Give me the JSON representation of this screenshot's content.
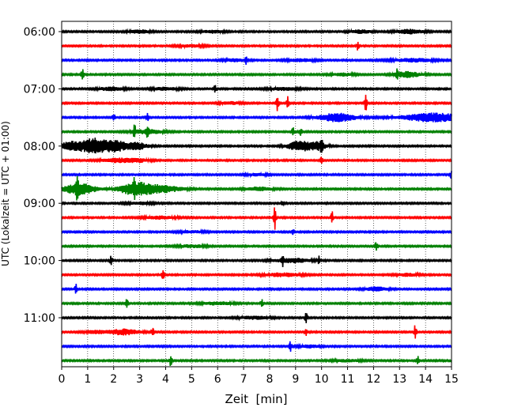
{
  "chart_data": {
    "type": "line",
    "title": "",
    "xlabel": "Zeit  [min]",
    "ylabel": "UTC (Lokalzeit = UTC + 01:00)",
    "xlim": [
      0,
      15
    ],
    "x_ticks": [
      "0",
      "1",
      "2",
      "3",
      "4",
      "5",
      "6",
      "7",
      "8",
      "9",
      "10",
      "11",
      "12",
      "13",
      "14",
      "15"
    ],
    "y_tick_labels": [
      "06:00",
      "07:00",
      "08:00",
      "09:00",
      "10:00",
      "11:00"
    ],
    "grid": "vertical dotted at each minute",
    "colors": [
      "#000000",
      "#ff0000",
      "#0000ff",
      "#008000"
    ],
    "trace_interval_min": 15,
    "baseline_amplitude": 0.05,
    "traces": [
      {
        "start": "06:00",
        "color": "black",
        "bursts": [
          [
            3.0,
            0.12,
            0.4
          ],
          [
            5.8,
            0.1,
            0.4
          ],
          [
            11.5,
            0.12,
            0.4
          ],
          [
            13.4,
            0.15,
            0.5
          ]
        ]
      },
      {
        "start": "06:15",
        "color": "red",
        "spikes": [
          [
            11.4,
            0.4
          ]
        ],
        "bursts": [
          [
            5.0,
            0.08,
            0.5
          ]
        ]
      },
      {
        "start": "06:30",
        "color": "blue",
        "spikes": [
          [
            7.1,
            0.3
          ]
        ],
        "bursts": [
          [
            6.7,
            0.1,
            0.4
          ],
          [
            9.2,
            0.1,
            0.5
          ],
          [
            13.5,
            0.12,
            0.8
          ]
        ]
      },
      {
        "start": "06:45",
        "color": "green",
        "spikes": [
          [
            0.8,
            0.55
          ],
          [
            12.9,
            0.35
          ]
        ],
        "bursts": [
          [
            13.3,
            0.2,
            0.5
          ],
          [
            10.8,
            0.1,
            0.4
          ]
        ]
      },
      {
        "start": "07:00",
        "color": "black",
        "spikes": [
          [
            5.9,
            0.35
          ]
        ],
        "bursts": [
          [
            1.9,
            0.12,
            0.5
          ],
          [
            4.0,
            0.1,
            0.5
          ],
          [
            8.5,
            0.1,
            0.6
          ]
        ]
      },
      {
        "start": "07:15",
        "color": "red",
        "spikes": [
          [
            8.3,
            0.55
          ],
          [
            8.7,
            0.5
          ],
          [
            11.7,
            0.65
          ]
        ],
        "bursts": [
          [
            6.5,
            0.1,
            0.4
          ]
        ]
      },
      {
        "start": "07:30",
        "color": "blue",
        "spikes": [
          [
            2.0,
            0.3
          ],
          [
            3.3,
            0.3
          ]
        ],
        "bursts": [
          [
            10.6,
            0.3,
            0.7
          ],
          [
            14.3,
            0.3,
            1.2
          ]
        ]
      },
      {
        "start": "07:45",
        "color": "green",
        "spikes": [
          [
            2.8,
            0.55
          ],
          [
            3.3,
            0.35
          ],
          [
            8.9,
            0.35
          ],
          [
            9.2,
            0.3
          ]
        ],
        "bursts": [
          [
            3.3,
            0.15,
            0.6
          ]
        ]
      },
      {
        "start": "08:00",
        "color": "black",
        "spikes": [
          [
            10.0,
            0.45
          ]
        ],
        "bursts": [
          [
            0.4,
            0.3,
            0.5
          ],
          [
            1.3,
            0.55,
            0.5
          ],
          [
            2.1,
            0.35,
            0.4
          ],
          [
            2.9,
            0.25,
            0.4
          ],
          [
            9.2,
            0.35,
            0.5
          ],
          [
            9.9,
            0.25,
            0.3
          ]
        ]
      },
      {
        "start": "08:15",
        "color": "red",
        "spikes": [
          [
            10.0,
            0.25
          ]
        ],
        "bursts": [
          [
            2.2,
            0.15,
            0.6
          ],
          [
            3.0,
            0.1,
            0.4
          ]
        ]
      },
      {
        "start": "08:30",
        "color": "blue",
        "spikes": [
          [
            15.0,
            0.35
          ]
        ],
        "bursts": [
          [
            7.5,
            0.08,
            0.4
          ]
        ]
      },
      {
        "start": "08:45",
        "color": "green",
        "spikes": [
          [
            0.6,
            0.6
          ],
          [
            2.8,
            0.6
          ]
        ],
        "bursts": [
          [
            0.7,
            0.4,
            0.6
          ],
          [
            2.9,
            0.45,
            0.7
          ],
          [
            4.0,
            0.2,
            0.7
          ],
          [
            7.6,
            0.12,
            0.5
          ]
        ]
      },
      {
        "start": "09:00",
        "color": "black",
        "spikes": [
          [
            8.5,
            0.2
          ]
        ],
        "bursts": [
          [
            3.0,
            0.08,
            0.5
          ]
        ]
      },
      {
        "start": "09:15",
        "color": "red",
        "spikes": [
          [
            8.2,
            0.85
          ],
          [
            10.4,
            0.45
          ]
        ],
        "bursts": [
          [
            3.8,
            0.1,
            0.6
          ]
        ]
      },
      {
        "start": "09:30",
        "color": "blue",
        "spikes": [
          [
            8.9,
            0.2
          ]
        ],
        "bursts": [
          [
            5.0,
            0.08,
            0.5
          ]
        ]
      },
      {
        "start": "09:45",
        "color": "green",
        "spikes": [
          [
            12.1,
            0.35
          ]
        ],
        "bursts": [
          [
            5.0,
            0.1,
            0.5
          ]
        ]
      },
      {
        "start": "10:00",
        "color": "black",
        "spikes": [
          [
            1.9,
            0.45
          ],
          [
            8.5,
            0.35
          ],
          [
            9.9,
            0.3
          ]
        ],
        "bursts": [
          [
            8.9,
            0.15,
            0.7
          ]
        ]
      },
      {
        "start": "10:15",
        "color": "red",
        "spikes": [
          [
            3.9,
            0.5
          ]
        ],
        "bursts": [
          [
            8.5,
            0.12,
            0.7
          ],
          [
            13.3,
            0.1,
            0.4
          ]
        ]
      },
      {
        "start": "10:30",
        "color": "blue",
        "spikes": [
          [
            0.55,
            0.4
          ]
        ],
        "bursts": [
          [
            12.1,
            0.15,
            0.4
          ]
        ]
      },
      {
        "start": "10:45",
        "color": "green",
        "spikes": [
          [
            2.5,
            0.45
          ],
          [
            7.7,
            0.3
          ]
        ],
        "bursts": [
          [
            6.0,
            0.1,
            0.6
          ]
        ]
      },
      {
        "start": "11:00",
        "color": "black",
        "spikes": [
          [
            9.4,
            0.5
          ]
        ],
        "bursts": [
          [
            7.4,
            0.1,
            0.6
          ]
        ]
      },
      {
        "start": "11:15",
        "color": "red",
        "spikes": [
          [
            3.5,
            0.3
          ],
          [
            9.4,
            0.3
          ],
          [
            13.6,
            0.5
          ]
        ],
        "bursts": [
          [
            2.4,
            0.2,
            0.6
          ],
          [
            1.3,
            0.1,
            0.4
          ]
        ]
      },
      {
        "start": "11:30",
        "color": "blue",
        "spikes": [
          [
            8.8,
            0.35
          ]
        ],
        "bursts": [
          [
            9.5,
            0.1,
            0.4
          ]
        ]
      },
      {
        "start": "11:45",
        "color": "green",
        "spikes": [
          [
            4.2,
            0.45
          ],
          [
            13.7,
            0.4
          ]
        ],
        "bursts": [
          [
            11.0,
            0.08,
            0.5
          ]
        ]
      }
    ]
  }
}
